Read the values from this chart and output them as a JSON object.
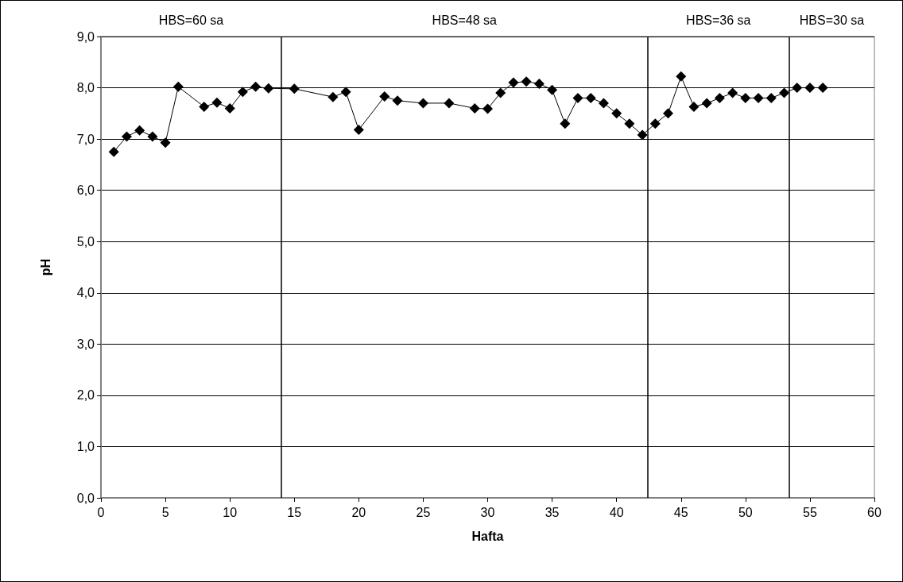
{
  "chart_data": {
    "type": "line",
    "xlabel": "Hafta",
    "ylabel": "pH",
    "xlim": [
      0,
      60
    ],
    "xticks": [
      0,
      5,
      10,
      15,
      20,
      25,
      30,
      35,
      40,
      45,
      50,
      55,
      60
    ],
    "ylim": [
      0,
      9
    ],
    "yticks": [
      {
        "value": 0,
        "label": "0,0"
      },
      {
        "value": 1,
        "label": "1,0"
      },
      {
        "value": 2,
        "label": "2,0"
      },
      {
        "value": 3,
        "label": "3,0"
      },
      {
        "value": 4,
        "label": "4,0"
      },
      {
        "value": 5,
        "label": "5,0"
      },
      {
        "value": 6,
        "label": "6,0"
      },
      {
        "value": 7,
        "label": "7,0"
      },
      {
        "value": 8,
        "label": "8,0"
      },
      {
        "value": 9,
        "label": "9,0"
      }
    ],
    "grid": "y",
    "marker": "diamond",
    "line_style": "solid",
    "x": [
      1,
      2,
      3,
      4,
      5,
      6,
      8,
      9,
      10,
      11,
      12,
      13,
      15,
      18,
      19,
      20,
      22,
      23,
      25,
      27,
      29,
      30,
      31,
      32,
      33,
      34,
      35,
      36,
      37,
      38,
      39,
      40,
      41,
      42,
      43,
      44,
      45,
      46,
      47,
      48,
      49,
      50,
      51,
      52,
      53,
      54,
      55,
      56
    ],
    "series": [
      {
        "color": "#000000",
        "values": [
          6.75,
          7.05,
          7.17,
          7.05,
          6.93,
          8.02,
          7.63,
          7.71,
          7.6,
          7.92,
          8.02,
          7.99,
          7.98,
          7.82,
          7.92,
          7.18,
          7.83,
          7.75,
          7.7,
          7.7,
          7.6,
          7.59,
          7.9,
          8.1,
          8.12,
          8.08,
          7.96,
          7.3,
          7.8,
          7.8,
          7.7,
          7.5,
          7.3,
          7.08,
          7.3,
          7.5,
          8.22,
          7.63,
          7.7,
          7.8,
          7.9,
          7.8,
          7.8,
          7.8,
          7.9,
          8.0,
          8.0,
          8.0
        ]
      }
    ],
    "ref_lines": [
      {
        "axis": "x",
        "value": 14,
        "color": "#000000"
      },
      {
        "axis": "x",
        "value": 42.4,
        "color": "#000000"
      },
      {
        "axis": "x",
        "value": 53.4,
        "color": "#000000"
      }
    ],
    "annotations": [
      "HBS=60 sa",
      "HBS=48 sa",
      "HBS=36 sa",
      "HBS=30 sa"
    ]
  }
}
